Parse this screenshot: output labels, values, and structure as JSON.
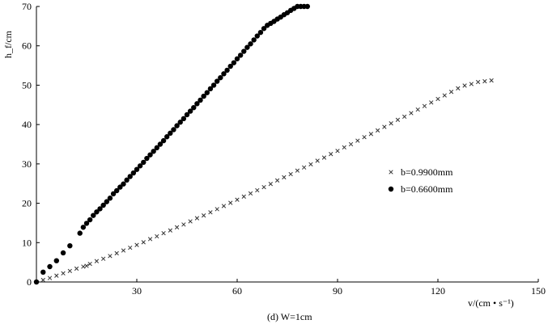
{
  "chart_data": {
    "type": "scatter",
    "caption": "(d) W=1cm",
    "xlabel": "v/(cm • s⁻¹)",
    "ylabel": "h_f/cm",
    "xlim": [
      0,
      150
    ],
    "ylim": [
      0,
      70
    ],
    "xticks": [
      30,
      60,
      90,
      120,
      150
    ],
    "yticks": [
      0,
      10,
      20,
      30,
      40,
      50,
      60,
      70
    ],
    "grid": false,
    "legend_position": "right",
    "series": [
      {
        "name": "b=0.9900mm",
        "marker": "x",
        "color": "#333333",
        "x": [
          0,
          2,
          4,
          6,
          8,
          10,
          12,
          14,
          15,
          16,
          18,
          20,
          22,
          24,
          26,
          28,
          30,
          32,
          34,
          36,
          38,
          40,
          42,
          44,
          46,
          48,
          50,
          52,
          54,
          56,
          58,
          60,
          62,
          64,
          66,
          68,
          70,
          72,
          74,
          76,
          78,
          80,
          82,
          84,
          86,
          88,
          90,
          92,
          94,
          96,
          98,
          100,
          102,
          104,
          106,
          108,
          110,
          112,
          114,
          116,
          118,
          120,
          122,
          124,
          126,
          128,
          130,
          132,
          134,
          136
        ],
        "y": [
          0,
          0.5,
          1.0,
          1.6,
          2.2,
          2.8,
          3.4,
          3.9,
          4.1,
          4.6,
          5.3,
          5.9,
          6.6,
          7.3,
          8.0,
          8.7,
          9.4,
          10.1,
          10.9,
          11.6,
          12.4,
          13.1,
          13.9,
          14.6,
          15.4,
          16.2,
          16.9,
          17.7,
          18.5,
          19.3,
          20.1,
          20.9,
          21.7,
          22.5,
          23.3,
          24.1,
          24.9,
          25.8,
          26.6,
          27.4,
          28.3,
          29.1,
          29.9,
          30.8,
          31.6,
          32.5,
          33.3,
          34.2,
          35.0,
          35.9,
          36.8,
          37.6,
          38.5,
          39.4,
          40.3,
          41.2,
          42.0,
          42.9,
          43.8,
          44.7,
          45.6,
          46.5,
          47.4,
          48.3,
          49.2,
          49.9,
          50.3,
          50.8,
          51.0,
          51.2
        ]
      },
      {
        "name": "b=0.6600mm",
        "marker": "circle",
        "color": "#000000",
        "x": [
          0,
          2,
          4,
          6,
          8,
          10,
          13,
          14,
          15,
          16,
          17,
          18,
          19,
          20,
          21,
          22,
          23,
          24,
          25,
          26,
          27,
          28,
          29,
          30,
          31,
          32,
          33,
          34,
          35,
          36,
          37,
          38,
          39,
          40,
          41,
          42,
          43,
          44,
          45,
          46,
          47,
          48,
          49,
          50,
          51,
          52,
          53,
          54,
          55,
          56,
          57,
          58,
          59,
          60,
          61,
          62,
          63,
          64,
          65,
          66,
          67,
          68,
          69,
          70,
          71,
          72,
          73,
          74,
          75,
          76,
          77,
          78,
          79,
          80,
          81
        ],
        "y": [
          0,
          2.5,
          3.9,
          5.4,
          7.4,
          9.2,
          12.4,
          13.9,
          14.9,
          15.8,
          16.9,
          17.8,
          18.6,
          19.5,
          20.4,
          21.3,
          22.4,
          23.2,
          24.1,
          24.9,
          25.9,
          26.8,
          27.7,
          28.6,
          29.5,
          30.4,
          31.4,
          32.3,
          33.2,
          34.1,
          35.0,
          35.9,
          36.9,
          37.8,
          38.7,
          39.7,
          40.6,
          41.5,
          42.5,
          43.4,
          44.3,
          45.3,
          46.2,
          47.2,
          48.1,
          49.1,
          50.0,
          51.0,
          51.9,
          52.9,
          53.8,
          54.8,
          55.7,
          56.7,
          57.6,
          58.6,
          59.6,
          60.5,
          61.5,
          62.5,
          63.4,
          64.4,
          65.2,
          65.7,
          66.2,
          66.8,
          67.3,
          67.9,
          68.4,
          69.0,
          69.5,
          70.0,
          70.0,
          70.0,
          70.0
        ]
      }
    ]
  }
}
